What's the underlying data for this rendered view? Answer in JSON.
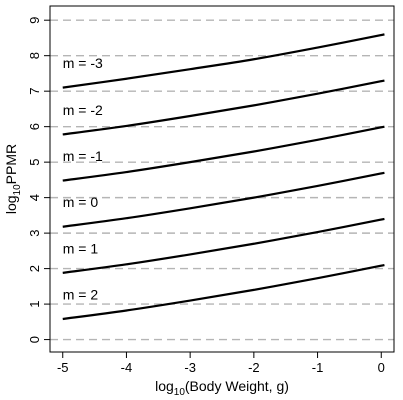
{
  "chart_data": {
    "type": "line",
    "xlabel": {
      "prefix": "log",
      "sub": "10",
      "rest": "(Body Weight, g)"
    },
    "ylabel": {
      "prefix": "log",
      "sub": "10",
      "rest": "PPMR"
    },
    "xlim": [
      -5.2,
      0.2
    ],
    "ylim": [
      -0.35,
      9.4
    ],
    "xticks": [
      -5,
      -4,
      -3,
      -2,
      -1,
      0
    ],
    "yticks": [
      0,
      1,
      2,
      3,
      4,
      5,
      6,
      7,
      8,
      9
    ],
    "grid": "horizontal dashed",
    "x": [
      -5,
      -4,
      -3,
      -2,
      -1,
      0.05
    ],
    "series": [
      {
        "name": "m = -3",
        "values": [
          7.1,
          7.35,
          7.62,
          7.9,
          8.23,
          8.6
        ]
      },
      {
        "name": "m = -2",
        "values": [
          5.78,
          6.02,
          6.3,
          6.6,
          6.93,
          7.3
        ]
      },
      {
        "name": "m = -1",
        "values": [
          4.48,
          4.72,
          5.0,
          5.3,
          5.63,
          6.0
        ]
      },
      {
        "name": "m = 0",
        "values": [
          3.18,
          3.42,
          3.7,
          4.0,
          4.33,
          4.7
        ]
      },
      {
        "name": "m = 1",
        "values": [
          1.88,
          2.12,
          2.4,
          2.7,
          3.03,
          3.4
        ]
      },
      {
        "name": "m = 2",
        "values": [
          0.58,
          0.82,
          1.1,
          1.4,
          1.73,
          2.1
        ]
      }
    ]
  }
}
